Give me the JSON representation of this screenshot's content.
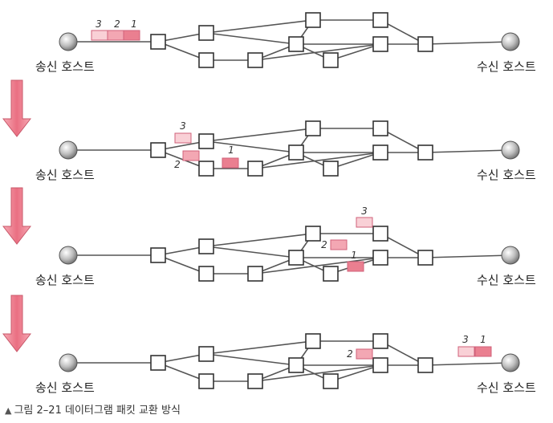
{
  "hosts": {
    "sender": "송신 호스트",
    "receiver": "수신 호스트"
  },
  "caption": {
    "marker": "▲",
    "number": "그림 2–21",
    "title": "데이터그램 패킷 교환 방식"
  },
  "colors": {
    "packet_light": "#f9d0d6",
    "packet_mid": "#f3a7b3",
    "packet_dark": "#ea7f90",
    "arrow": "#e96c7e",
    "line": "#555555"
  },
  "stages": [
    {
      "packets": [
        {
          "label": "3"
        },
        {
          "label": "2"
        },
        {
          "label": "1"
        }
      ]
    },
    {
      "packets": [
        {
          "label": "3"
        },
        {
          "label": "2"
        },
        {
          "label": "1"
        }
      ]
    },
    {
      "packets": [
        {
          "label": "3"
        },
        {
          "label": "2"
        },
        {
          "label": "1"
        }
      ]
    },
    {
      "packets": [
        {
          "label": "3"
        },
        {
          "label": "1"
        },
        {
          "label": "2"
        }
      ]
    }
  ]
}
